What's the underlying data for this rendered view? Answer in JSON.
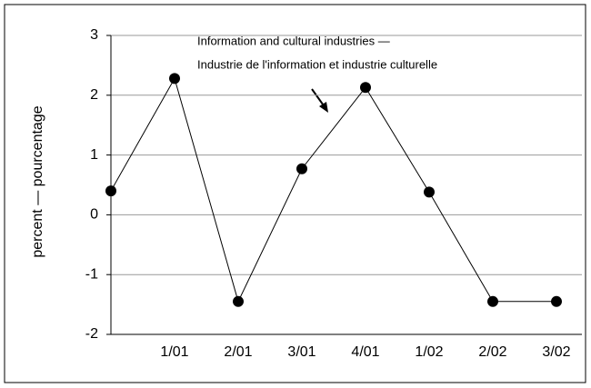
{
  "chart_data": {
    "type": "line",
    "y_label": "percent — pourcentage",
    "annotations": [
      "Information and cultural industries —",
      "Industrie de l'information et industrie culturelle"
    ],
    "categories": [
      null,
      "1/01",
      "2/01",
      "3/01",
      "4/01",
      "1/02",
      "2/02",
      "3/02"
    ],
    "series": [
      {
        "name": "Information and cultural industries",
        "color": "#000000",
        "values": [
          0.4,
          2.28,
          -1.45,
          0.77,
          2.13,
          0.38,
          -1.45,
          -1.45
        ]
      }
    ],
    "ylim": [
      -2,
      3
    ],
    "yticks": [
      3,
      2,
      1,
      0,
      -1,
      -2
    ],
    "grid": true
  }
}
